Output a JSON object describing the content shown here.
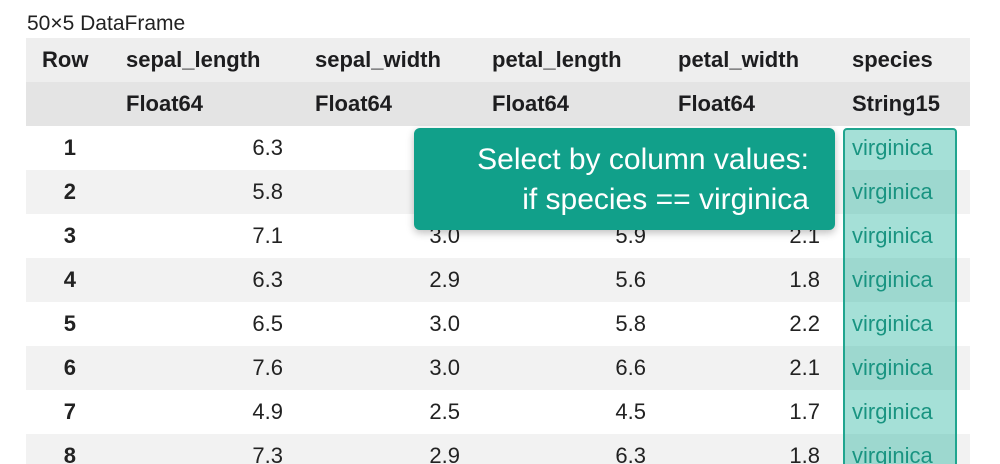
{
  "caption": "50×5 DataFrame",
  "columns": [
    {
      "name": "Row",
      "type": ""
    },
    {
      "name": "sepal_length",
      "type": "Float64"
    },
    {
      "name": "sepal_width",
      "type": "Float64"
    },
    {
      "name": "petal_length",
      "type": "Float64"
    },
    {
      "name": "petal_width",
      "type": "Float64"
    },
    {
      "name": "species",
      "type": "String15"
    }
  ],
  "rows": [
    {
      "row": "1",
      "sepal_length": "6.3",
      "sepal_width": "",
      "petal_length": "",
      "petal_width": "",
      "species": "virginica"
    },
    {
      "row": "2",
      "sepal_length": "5.8",
      "sepal_width": "",
      "petal_length": "",
      "petal_width": "",
      "species": "virginica"
    },
    {
      "row": "3",
      "sepal_length": "7.1",
      "sepal_width": "3.0",
      "petal_length": "5.9",
      "petal_width": "2.1",
      "species": "virginica"
    },
    {
      "row": "4",
      "sepal_length": "6.3",
      "sepal_width": "2.9",
      "petal_length": "5.6",
      "petal_width": "1.8",
      "species": "virginica"
    },
    {
      "row": "5",
      "sepal_length": "6.5",
      "sepal_width": "3.0",
      "petal_length": "5.8",
      "petal_width": "2.2",
      "species": "virginica"
    },
    {
      "row": "6",
      "sepal_length": "7.6",
      "sepal_width": "3.0",
      "petal_length": "6.6",
      "petal_width": "2.1",
      "species": "virginica"
    },
    {
      "row": "7",
      "sepal_length": "4.9",
      "sepal_width": "2.5",
      "petal_length": "4.5",
      "petal_width": "1.7",
      "species": "virginica"
    },
    {
      "row": "8",
      "sepal_length": "7.3",
      "sepal_width": "2.9",
      "petal_length": "6.3",
      "petal_width": "1.8",
      "species": "virginica"
    }
  ],
  "callout": {
    "line1": "Select by column values:",
    "line2": "if species == virginica"
  },
  "colors": {
    "callout_bg": "#11a08a",
    "highlight_border": "#20a58f",
    "header_bg": "#eeeeee",
    "type_row_bg": "#e4e4e4",
    "stripe_bg": "#f2f2f2"
  }
}
